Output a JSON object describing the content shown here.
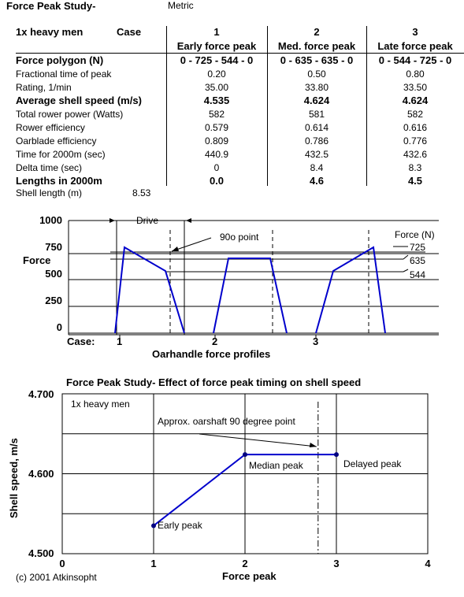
{
  "header": {
    "title": "Force Peak Study-",
    "units": "Metric",
    "crew": "1x heavy men",
    "case_label": "Case"
  },
  "cases": [
    {
      "num": "1",
      "name": "Early force peak"
    },
    {
      "num": "2",
      "name": "Med. force peak"
    },
    {
      "num": "3",
      "name": "Late force peak"
    }
  ],
  "rows": [
    {
      "label": "Force polygon (N)",
      "bold": true,
      "values": [
        "0 - 725 - 544 - 0",
        "0 - 635 - 635 - 0",
        "0 - 544 - 725 - 0"
      ]
    },
    {
      "label": "Fractional time of peak",
      "bold": false,
      "values": [
        "0.20",
        "0.50",
        "0.80"
      ]
    },
    {
      "label": "Rating, 1/min",
      "bold": false,
      "values": [
        "35.00",
        "33.80",
        "33.50"
      ]
    },
    {
      "label": "Average shell speed (m/s)",
      "bold": true,
      "values": [
        "4.535",
        "4.624",
        "4.624"
      ]
    },
    {
      "label": "Total rower power (Watts)",
      "bold": false,
      "values": [
        "582",
        "581",
        "582"
      ]
    },
    {
      "label": "Rower efficiency",
      "bold": false,
      "values": [
        "0.579",
        "0.614",
        "0.616"
      ]
    },
    {
      "label": "Oarblade efficiency",
      "bold": false,
      "values": [
        "0.809",
        "0.786",
        "0.776"
      ]
    },
    {
      "label": "Time for 2000m (sec)",
      "bold": false,
      "values": [
        "440.9",
        "432.5",
        "432.6"
      ]
    },
    {
      "label": "Delta time (sec)",
      "bold": false,
      "values": [
        "0",
        "8.4",
        "8.3"
      ]
    },
    {
      "label": "Lengths in 2000m",
      "bold": true,
      "values": [
        "0.0",
        "4.6",
        "4.5"
      ]
    }
  ],
  "shell_length": {
    "label": "Shell length (m)",
    "value": "8.53"
  },
  "profile_chart": {
    "ylabel": "Force",
    "yticks": [
      "1000",
      "750",
      "500",
      "250",
      "0"
    ],
    "drive_label": "Drive",
    "point_label": "90o point",
    "legend_title": "Force (N)",
    "legend_values": [
      "725",
      "635",
      "544"
    ],
    "case_label": "Case:",
    "case_ticks": [
      "1",
      "2",
      "3"
    ],
    "xlabel": "Oarhandle force profiles",
    "line_color": "#0000cc"
  },
  "chart_data": {
    "type": "line",
    "title": "Force Peak Study-  Effect of force peak timing on shell speed",
    "xlabel": "Force peak",
    "ylabel": "Shell speed, m/s",
    "x": [
      1,
      2,
      3
    ],
    "y": [
      4.535,
      4.624,
      4.624
    ],
    "xlim": [
      0,
      4
    ],
    "ylim": [
      4.5,
      4.7
    ],
    "xticks": [
      "0",
      "1",
      "2",
      "3",
      "4"
    ],
    "yticks": [
      "4.700",
      "4.600",
      "4.500"
    ],
    "annotations": [
      "1x heavy men",
      "Approx. oarshaft 90 degree point",
      "Early peak",
      "Median peak",
      "Delayed peak"
    ],
    "reference_x": 2.8,
    "grid": true,
    "line_color": "#0000cc"
  },
  "footer": {
    "copyright": "(c) 2001 Atkinsopht"
  }
}
